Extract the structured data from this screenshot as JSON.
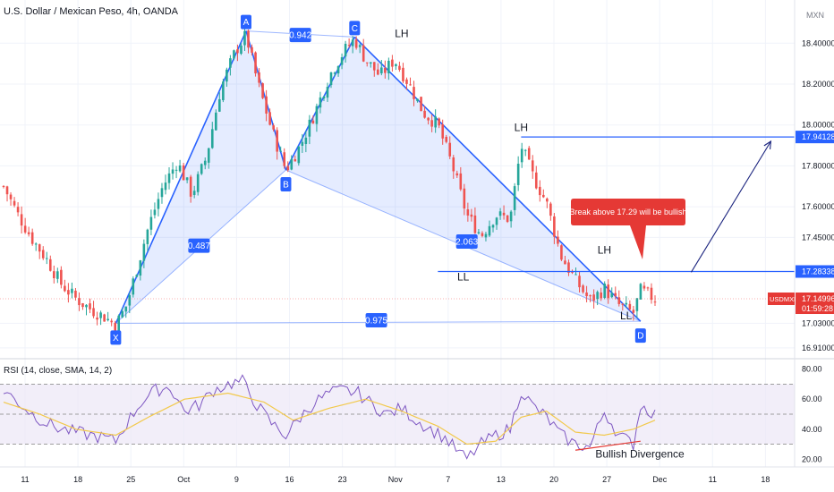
{
  "header": {
    "title": "U.S. Dollar / Mexican Peso, 4h, OANDA",
    "currency": "MXN"
  },
  "colors": {
    "up": "#26a69a",
    "down": "#ef5350",
    "pattern": "#2962ff",
    "pattern_fill": "#2962ff",
    "rsi_line": "#7e57c2",
    "rsi_ma": "#f2c94c",
    "rsi_band": "#ede7f6",
    "alert": "#e53935"
  },
  "chart_data": [
    {
      "type": "candlestick",
      "title": "U.S. Dollar / Mexican Peso, 4h, OANDA",
      "y_ticks": [
        "18.40000",
        "18.20000",
        "18.00000",
        "17.80000",
        "17.60000",
        "17.45000",
        "17.03000",
        "16.91000"
      ],
      "ylim": [
        16.87,
        18.48
      ],
      "x_ticks": [
        "11",
        "18",
        "25",
        "Oct",
        "9",
        "16",
        "23",
        "Nov",
        "7",
        "13",
        "20",
        "27",
        "Dec",
        "11",
        "18"
      ],
      "price_tags": [
        {
          "label": "17.94128",
          "value": 17.94128
        },
        {
          "label": "17.28338",
          "value": 17.28338
        },
        {
          "label": "USDMXN",
          "value": 17.14996,
          "price": "17.14996",
          "countdown": "01:59:28"
        }
      ],
      "close_path": [
        {
          "t": 0,
          "v": 17.7
        },
        {
          "t": 4,
          "v": 17.56
        },
        {
          "t": 8,
          "v": 17.44
        },
        {
          "t": 12,
          "v": 17.34
        },
        {
          "t": 16,
          "v": 17.22
        },
        {
          "t": 20,
          "v": 17.15
        },
        {
          "t": 24,
          "v": 17.1
        },
        {
          "t": 28,
          "v": 17.06
        },
        {
          "t": 31,
          "v": 17.02
        },
        {
          "t": 34,
          "v": 17.12
        },
        {
          "t": 40,
          "v": 17.5
        },
        {
          "t": 44,
          "v": 17.7
        },
        {
          "t": 48,
          "v": 17.82
        },
        {
          "t": 52,
          "v": 17.66
        },
        {
          "t": 56,
          "v": 17.84
        },
        {
          "t": 60,
          "v": 18.18
        },
        {
          "t": 64,
          "v": 18.36
        },
        {
          "t": 67,
          "v": 18.44
        },
        {
          "t": 70,
          "v": 18.22
        },
        {
          "t": 74,
          "v": 17.98
        },
        {
          "t": 78,
          "v": 17.78
        },
        {
          "t": 82,
          "v": 17.9
        },
        {
          "t": 86,
          "v": 18.06
        },
        {
          "t": 90,
          "v": 18.24
        },
        {
          "t": 94,
          "v": 18.36
        },
        {
          "t": 97,
          "v": 18.42
        },
        {
          "t": 100,
          "v": 18.32
        },
        {
          "t": 104,
          "v": 18.24
        },
        {
          "t": 108,
          "v": 18.32
        },
        {
          "t": 112,
          "v": 18.2
        },
        {
          "t": 116,
          "v": 18.06
        },
        {
          "t": 120,
          "v": 18.0
        },
        {
          "t": 124,
          "v": 17.8
        },
        {
          "t": 128,
          "v": 17.56
        },
        {
          "t": 132,
          "v": 17.46
        },
        {
          "t": 136,
          "v": 17.56
        },
        {
          "t": 140,
          "v": 17.54
        },
        {
          "t": 143,
          "v": 17.9
        },
        {
          "t": 146,
          "v": 17.76
        },
        {
          "t": 150,
          "v": 17.62
        },
        {
          "t": 154,
          "v": 17.36
        },
        {
          "t": 158,
          "v": 17.24
        },
        {
          "t": 162,
          "v": 17.14
        },
        {
          "t": 166,
          "v": 17.2
        },
        {
          "t": 170,
          "v": 17.12
        },
        {
          "t": 174,
          "v": 17.08
        },
        {
          "t": 176,
          "v": 17.19
        },
        {
          "t": 180,
          "v": 17.15
        }
      ],
      "harmonic": {
        "points": [
          {
            "label": "X",
            "t": 31,
            "v": 17.03
          },
          {
            "label": "A",
            "t": 67,
            "v": 18.46
          },
          {
            "label": "B",
            "t": 78,
            "v": 17.78
          },
          {
            "label": "C",
            "t": 97,
            "v": 18.43
          },
          {
            "label": "D",
            "t": 176,
            "v": 17.04
          }
        ],
        "ratios": [
          {
            "label": "0.942",
            "t": 82,
            "v": 18.44
          },
          {
            "label": "0.487",
            "t": 54,
            "v": 17.41
          },
          {
            "label": "2.063",
            "t": 128,
            "v": 17.43
          },
          {
            "label": "0.975",
            "t": 103,
            "v": 17.045
          }
        ]
      },
      "annotations": [
        {
          "text": "LH",
          "t": 110,
          "v": 18.43
        },
        {
          "text": "LH",
          "t": 143,
          "v": 17.97
        },
        {
          "text": "LH",
          "t": 166,
          "v": 17.37
        },
        {
          "text": "LL",
          "t": 127,
          "v": 17.24
        },
        {
          "text": "LL",
          "t": 172,
          "v": 17.05
        }
      ],
      "levels": [
        {
          "value": 17.94128,
          "from_t": 143
        },
        {
          "value": 17.28338,
          "from_t": 120
        }
      ],
      "forecast_arrow": {
        "from": {
          "t": 190,
          "v": 17.28
        },
        "to": {
          "t": 212,
          "v": 17.92
        }
      },
      "callout": {
        "text": "Break above 17.29 will be bullish"
      }
    },
    {
      "type": "line",
      "title": "RSI (14, close, SMA, 14, 2)",
      "y_ticks": [
        "80.00",
        "60.00",
        "40.00",
        "20.00"
      ],
      "ylim": [
        16,
        84
      ],
      "band": [
        30,
        70
      ],
      "midline": 50,
      "rsi": [
        {
          "t": 0,
          "v": 66
        },
        {
          "t": 4,
          "v": 58
        },
        {
          "t": 8,
          "v": 50
        },
        {
          "t": 12,
          "v": 44
        },
        {
          "t": 16,
          "v": 40
        },
        {
          "t": 20,
          "v": 38
        },
        {
          "t": 24,
          "v": 36
        },
        {
          "t": 28,
          "v": 34
        },
        {
          "t": 31,
          "v": 32
        },
        {
          "t": 34,
          "v": 44
        },
        {
          "t": 38,
          "v": 58
        },
        {
          "t": 42,
          "v": 66
        },
        {
          "t": 46,
          "v": 68
        },
        {
          "t": 50,
          "v": 52
        },
        {
          "t": 54,
          "v": 56
        },
        {
          "t": 58,
          "v": 66
        },
        {
          "t": 62,
          "v": 70
        },
        {
          "t": 66,
          "v": 72
        },
        {
          "t": 70,
          "v": 56
        },
        {
          "t": 74,
          "v": 44
        },
        {
          "t": 78,
          "v": 36
        },
        {
          "t": 82,
          "v": 48
        },
        {
          "t": 86,
          "v": 58
        },
        {
          "t": 90,
          "v": 64
        },
        {
          "t": 94,
          "v": 66
        },
        {
          "t": 98,
          "v": 64
        },
        {
          "t": 102,
          "v": 56
        },
        {
          "t": 106,
          "v": 50
        },
        {
          "t": 110,
          "v": 54
        },
        {
          "t": 114,
          "v": 46
        },
        {
          "t": 118,
          "v": 40
        },
        {
          "t": 122,
          "v": 34
        },
        {
          "t": 126,
          "v": 24
        },
        {
          "t": 128,
          "v": 20
        },
        {
          "t": 132,
          "v": 30
        },
        {
          "t": 136,
          "v": 36
        },
        {
          "t": 140,
          "v": 40
        },
        {
          "t": 143,
          "v": 66
        },
        {
          "t": 146,
          "v": 56
        },
        {
          "t": 150,
          "v": 48
        },
        {
          "t": 154,
          "v": 36
        },
        {
          "t": 158,
          "v": 30
        },
        {
          "t": 162,
          "v": 28
        },
        {
          "t": 166,
          "v": 52
        },
        {
          "t": 170,
          "v": 36
        },
        {
          "t": 174,
          "v": 30
        },
        {
          "t": 176,
          "v": 56
        },
        {
          "t": 180,
          "v": 50
        }
      ],
      "rsi_ma": [
        {
          "t": 0,
          "v": 58
        },
        {
          "t": 10,
          "v": 50
        },
        {
          "t": 20,
          "v": 40
        },
        {
          "t": 31,
          "v": 36
        },
        {
          "t": 40,
          "v": 48
        },
        {
          "t": 50,
          "v": 60
        },
        {
          "t": 62,
          "v": 64
        },
        {
          "t": 72,
          "v": 58
        },
        {
          "t": 80,
          "v": 46
        },
        {
          "t": 90,
          "v": 54
        },
        {
          "t": 100,
          "v": 60
        },
        {
          "t": 110,
          "v": 52
        },
        {
          "t": 120,
          "v": 42
        },
        {
          "t": 128,
          "v": 30
        },
        {
          "t": 136,
          "v": 32
        },
        {
          "t": 143,
          "v": 48
        },
        {
          "t": 150,
          "v": 52
        },
        {
          "t": 158,
          "v": 38
        },
        {
          "t": 166,
          "v": 36
        },
        {
          "t": 174,
          "v": 40
        },
        {
          "t": 180,
          "v": 46
        }
      ],
      "divergence": {
        "from": {
          "t": 158,
          "v": 26
        },
        "to": {
          "t": 176,
          "v": 32
        }
      },
      "annotation": {
        "text": "Bullish Divergence"
      }
    }
  ]
}
